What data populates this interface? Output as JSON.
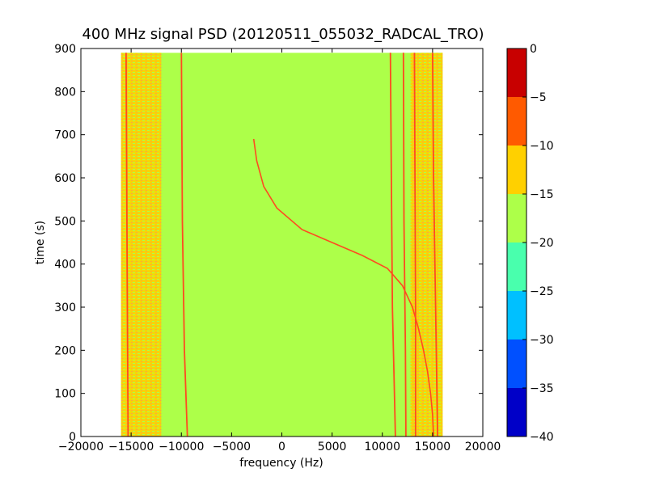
{
  "chart_data": {
    "type": "heatmap",
    "title": "400 MHz signal PSD (20120511_055032_RADCAL_TRO)",
    "xlabel": "frequency (Hz)",
    "ylabel": "time (s)",
    "xlim": [
      -20000,
      20000
    ],
    "ylim": [
      0,
      900
    ],
    "x_ticks": [
      -20000,
      -15000,
      -10000,
      -5000,
      0,
      5000,
      10000,
      15000,
      20000
    ],
    "y_ticks": [
      0,
      100,
      200,
      300,
      400,
      500,
      600,
      700,
      800,
      900
    ],
    "data_extent": {
      "x": [
        -16000,
        16000
      ],
      "y": [
        0,
        890
      ]
    },
    "background_level": "-20 to -15",
    "colorbar": {
      "ticks": [
        0,
        -5,
        -10,
        -15,
        -20,
        -25,
        -30,
        -35,
        -40
      ],
      "levels": [
        {
          "from": -40,
          "to": -35,
          "color": "#0000c8"
        },
        {
          "from": -35,
          "to": -30,
          "color": "#0050ff"
        },
        {
          "from": -30,
          "to": -25,
          "color": "#00c0ff"
        },
        {
          "from": -25,
          "to": -20,
          "color": "#49ffad"
        },
        {
          "from": -20,
          "to": -15,
          "color": "#adff49"
        },
        {
          "from": -15,
          "to": -10,
          "color": "#ffd000"
        },
        {
          "from": -10,
          "to": -5,
          "color": "#ff5a00"
        },
        {
          "from": -5,
          "to": 0,
          "color": "#c80000"
        }
      ]
    },
    "features": [
      {
        "name": "left noise band",
        "x": [
          -16000,
          -12000
        ],
        "level": "-15 to -10"
      },
      {
        "name": "right noise band",
        "x": [
          12800,
          16000
        ],
        "level": "-15 to -10"
      },
      {
        "name": "line near -10 kHz",
        "points": [
          [
            -10000,
            890
          ],
          [
            -9900,
            500
          ],
          [
            -9700,
            200
          ],
          [
            -9400,
            0
          ]
        ]
      },
      {
        "name": "line near -15 kHz",
        "points": [
          [
            -15500,
            890
          ],
          [
            -15400,
            400
          ],
          [
            -15300,
            0
          ]
        ]
      },
      {
        "name": "line near 11 kHz",
        "points": [
          [
            10800,
            890
          ],
          [
            10900,
            600
          ],
          [
            11000,
            300
          ],
          [
            11200,
            100
          ],
          [
            11300,
            0
          ]
        ]
      },
      {
        "name": "line near 12 kHz",
        "points": [
          [
            12100,
            890
          ],
          [
            12150,
            500
          ],
          [
            12300,
            200
          ],
          [
            12350,
            0
          ]
        ]
      },
      {
        "name": "line near 13 kHz",
        "points": [
          [
            13200,
            890
          ],
          [
            13250,
            600
          ],
          [
            13300,
            300
          ],
          [
            13300,
            0
          ]
        ]
      },
      {
        "name": "line near 15 kHz",
        "points": [
          [
            15000,
            890
          ],
          [
            15100,
            600
          ],
          [
            15300,
            300
          ],
          [
            15500,
            0
          ]
        ]
      },
      {
        "name": "chirp",
        "points": [
          [
            -2800,
            690
          ],
          [
            -2500,
            640
          ],
          [
            -1800,
            580
          ],
          [
            -500,
            530
          ],
          [
            2000,
            480
          ],
          [
            5000,
            450
          ],
          [
            8000,
            420
          ],
          [
            10500,
            390
          ],
          [
            12000,
            350
          ],
          [
            13000,
            300
          ],
          [
            13600,
            250
          ],
          [
            14100,
            200
          ],
          [
            14500,
            150
          ],
          [
            14800,
            100
          ],
          [
            15000,
            50
          ],
          [
            15100,
            0
          ]
        ]
      }
    ]
  }
}
